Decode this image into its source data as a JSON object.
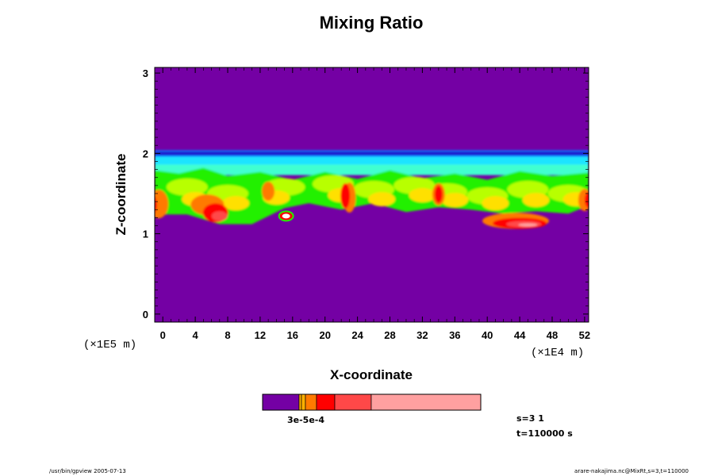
{
  "chart_data": {
    "type": "heatmap",
    "title": "Mixing Ratio",
    "xlabel": "X-coordinate",
    "ylabel": "Z-coordinate",
    "x_unit": "(×1E4 m)",
    "y_unit": "(×1E5 m)",
    "xlim": [
      -1,
      52.5
    ],
    "ylim": [
      -0.1,
      3.07
    ],
    "x_ticks": [
      0,
      4,
      8,
      12,
      16,
      20,
      24,
      28,
      32,
      36,
      40,
      44,
      48,
      52
    ],
    "y_ticks": [
      0,
      1,
      2,
      3
    ],
    "background_color": "#7400a4",
    "colorbar": {
      "label": "3e-5e-4",
      "colors": [
        "#7400a4",
        "#ffb000",
        "#ff7a00",
        "#ff0000",
        "#ff4848",
        "#ffa0a0"
      ]
    },
    "info_lines": [
      "s=3 1",
      "t=110000 s"
    ],
    "footer_left": "/usr/bin/gpview 2005-07-13",
    "footer_right": "arare-nakajima.nc@MixRt,s=3,t=110000",
    "palette": {
      "dark_blue": "#1a00c8",
      "blue": "#1070ff",
      "cyan": "#1ee4ff",
      "teal": "#40ffd0",
      "green": "#20f000",
      "yellow_green": "#b8ff00",
      "yellow": "#ffe000",
      "orange": "#ff7a00",
      "red": "#ff0000",
      "light_red": "#ff4848",
      "pink": "#ffa0a0",
      "white": "#ffffff"
    }
  }
}
